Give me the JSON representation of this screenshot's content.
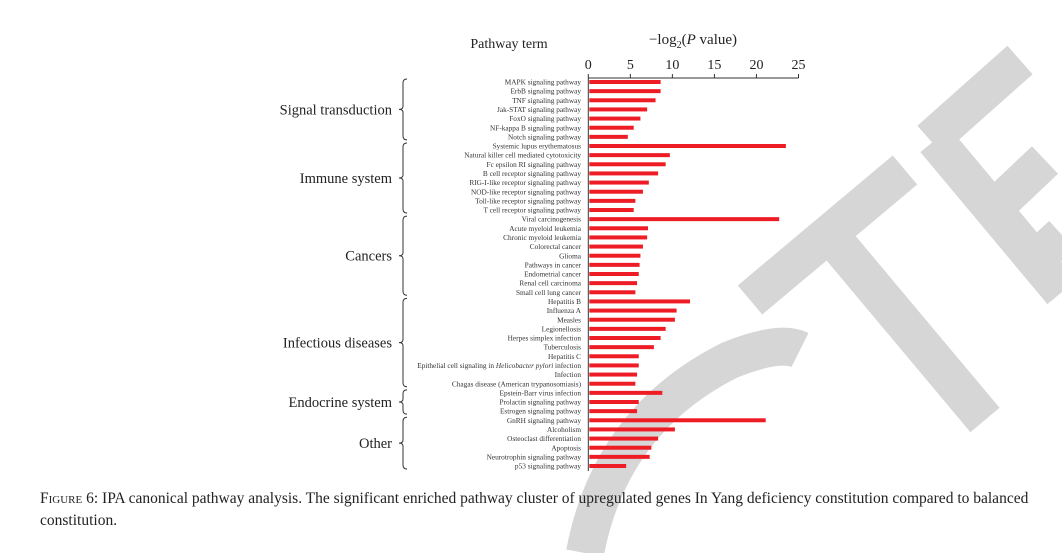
{
  "chart_data": {
    "type": "bar",
    "orientation": "horizontal",
    "title": "",
    "ylabel": "Pathway term",
    "xlabel": "−log2(P value)",
    "xlabel_parts": {
      "prefix": "−log",
      "sub": "2",
      "rest_open": "(",
      "italic": "P",
      "rest": " value)"
    },
    "xlim": [
      0,
      25
    ],
    "xticks": [
      "0",
      "5",
      "10",
      "15",
      "20",
      "25"
    ],
    "bar_color": "#ee1c25",
    "groups": [
      {
        "name": "Signal transduction",
        "count": 7
      },
      {
        "name": "Immune system",
        "count": 8
      },
      {
        "name": "Cancers",
        "count": 9
      },
      {
        "name": "Infectious diseases",
        "count": 10
      },
      {
        "name": "Endocrine system",
        "count": 3
      },
      {
        "name": "Other",
        "count": 6
      }
    ],
    "categories": [
      "MAPK signaling pathway",
      "ErbB signaling pathway",
      "TNF signaling pathway",
      "Jak-STAT signaling pathway",
      "FoxO signaling pathway",
      "NF-kappa B signaling pathway",
      "Notch signaling pathway",
      "Systemic lupus erythematosus",
      "Natural killer cell mediated cytotoxicity",
      "Fc epsilon RI signaling pathway",
      "B cell receptor signaling pathway",
      "RIG-I-like receptor signaling pathway",
      "NOD-like receptor signaling pathway",
      "Toll-like receptor signaling pathway",
      "T cell receptor signaling pathway",
      "Viral carcinogenesis",
      "Acute myeloid leukemia",
      "Chronic myeloid leukemia",
      "Colorectal cancer",
      "Glioma",
      "Pathways in cancer",
      "Endometrial cancer",
      "Renal cell carcinoma",
      "Small cell lung cancer",
      "Hepatitis B",
      "Influenza A",
      "Measles",
      "Legionellosis",
      "Herpes simplex infection",
      "Tuberculosis",
      "Hepatitis C",
      "Epithelial cell signaling in Helicobacter pylori infection",
      "Infection",
      "Chagas disease (American trypanosomiasis)",
      "Epstein-Barr virus infection",
      "Prolactin signaling pathway",
      "Estrogen signaling pathway",
      "GnRH signaling pathway",
      "Alcoholism",
      "Osteoclast differentiation",
      "Apoptosis",
      "Neurotrophin signaling pathway",
      "p53 signaling pathway"
    ],
    "values": [
      8.6,
      8.6,
      8.0,
      7.0,
      6.2,
      5.4,
      4.7,
      23.5,
      9.7,
      9.2,
      8.3,
      7.2,
      6.5,
      5.6,
      5.4,
      22.7,
      7.1,
      7.0,
      6.5,
      6.2,
      6.1,
      6.0,
      5.8,
      5.6,
      12.1,
      10.5,
      10.3,
      9.2,
      8.6,
      7.8,
      6.0,
      6.0,
      5.8,
      5.6,
      8.8,
      6.0,
      5.8,
      21.1,
      10.3,
      8.3,
      7.5,
      7.3,
      4.5
    ]
  },
  "caption": {
    "figure_label": "Figure 6:",
    "text": " IPA canonical pathway analysis. The significant enriched pathway cluster of upregulated genes In Yang deficiency constitution compared to balanced constitution."
  },
  "watermark": "RETRACTED"
}
